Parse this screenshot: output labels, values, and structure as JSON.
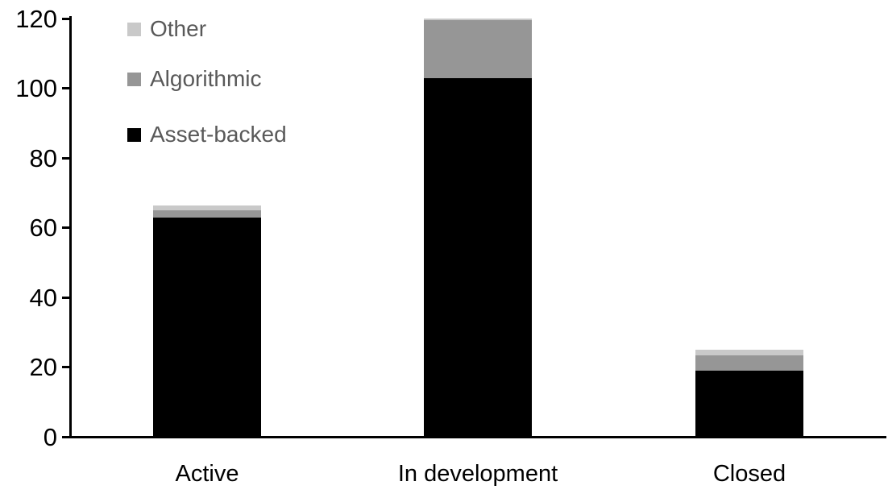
{
  "chart_data": {
    "type": "bar",
    "stacked": true,
    "title": "",
    "xlabel": "",
    "ylabel": "",
    "categories": [
      "Active",
      "In development",
      "Closed"
    ],
    "series": [
      {
        "name": "Asset-backed",
        "color": "#000000",
        "values": [
          63,
          103,
          19
        ]
      },
      {
        "name": "Algorithmic",
        "color": "#969696",
        "values": [
          2,
          16.5,
          4.5
        ]
      },
      {
        "name": "Other",
        "color": "#c9c9c9",
        "values": [
          1.5,
          0.5,
          1.5
        ]
      }
    ],
    "totals": [
      66.5,
      120,
      25
    ],
    "legend": [
      "Other",
      "Algorithmic",
      "Asset-backed"
    ],
    "legend_position": "top-left",
    "ylim": [
      0,
      120
    ],
    "yticks": [
      "0",
      "20",
      "40",
      "60",
      "80",
      "100",
      "120"
    ],
    "grid": false
  },
  "colors": {
    "axis": "#000000",
    "tick_label_text": "#000000",
    "category_label_text": "#000000",
    "legend_text": "#595959",
    "background": "#ffffff"
  }
}
